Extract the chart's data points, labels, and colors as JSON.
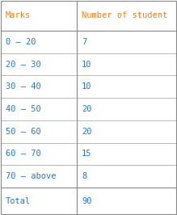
{
  "header": [
    "Marks",
    "Number of student"
  ],
  "rows": [
    [
      "0 – 20",
      "7"
    ],
    [
      "20 – 30",
      "10"
    ],
    [
      "30 – 40",
      "10"
    ],
    [
      "40 – 50",
      "20"
    ],
    [
      "50 – 60",
      "20"
    ],
    [
      "60 – 70",
      "15"
    ],
    [
      "70 – above",
      "8"
    ]
  ],
  "total_label": "Total",
  "total_value": "90",
  "header_text_color": "#e8821e",
  "data_text_color": "#2277cc",
  "total_text_color": "#2277cc",
  "background_color": "#ffffff",
  "border_color": "#888888",
  "font_size": 7.5,
  "header_font_size": 7.5
}
